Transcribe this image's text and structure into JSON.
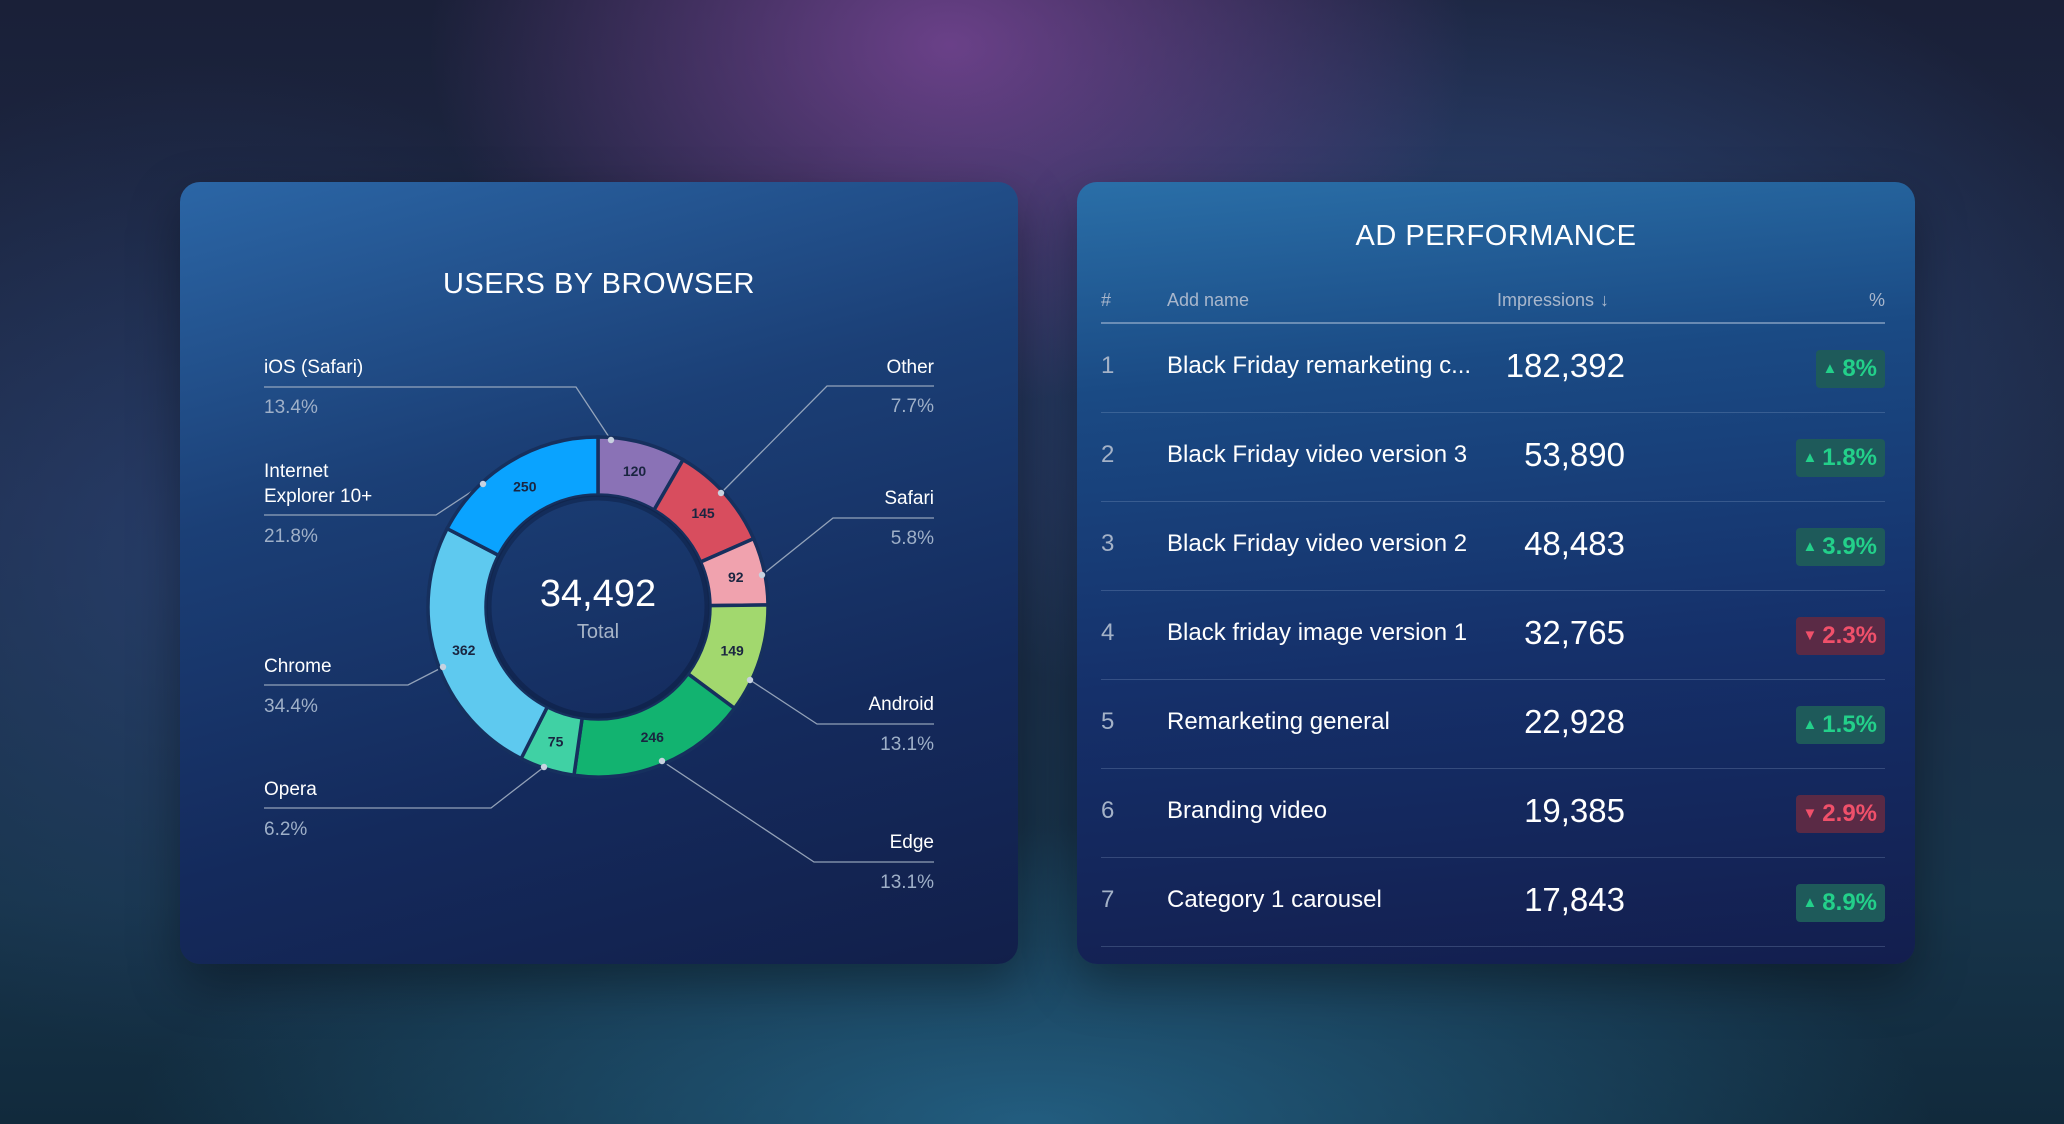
{
  "users_by_browser": {
    "title": "USERS BY BROWSER",
    "center_total": "34,492",
    "center_label": "Total",
    "chart_data": {
      "type": "pie",
      "title": "USERS BY BROWSER",
      "slices": [
        {
          "label": "iOS (Safari)",
          "value": 120,
          "percent": "13.4%",
          "color": "#8a72b6"
        },
        {
          "label": "Other",
          "value": 145,
          "percent": "7.7%",
          "color": "#d84d5e"
        },
        {
          "label": "Safari",
          "value": 92,
          "percent": "5.8%",
          "color": "#f0a2ae"
        },
        {
          "label": "Android",
          "value": 149,
          "percent": "13.1%",
          "color": "#a2d86e"
        },
        {
          "label": "Edge",
          "value": 246,
          "percent": "13.1%",
          "color": "#12b370"
        },
        {
          "label": "Opera",
          "value": 75,
          "percent": "6.2%",
          "color": "#40d1a4"
        },
        {
          "label": "Chrome",
          "value": 362,
          "percent": "34.4%",
          "color": "#5ec9ef"
        },
        {
          "label": "Internet Explorer 10+",
          "value": 250,
          "percent": "21.8%",
          "color": "#0aa3ff"
        }
      ],
      "total": "34,492"
    },
    "legend": {
      "ios": {
        "name": "iOS (Safari)",
        "pct": "13.4%"
      },
      "ie_line1": "Internet",
      "ie_line2": "Explorer 10+",
      "ie_pct": "21.8%",
      "chrome": {
        "name": "Chrome",
        "pct": "34.4%"
      },
      "opera": {
        "name": "Opera",
        "pct": "6.2%"
      },
      "other": {
        "name": "Other",
        "pct": "7.7%"
      },
      "safari": {
        "name": "Safari",
        "pct": "5.8%"
      },
      "android": {
        "name": "Android",
        "pct": "13.1%"
      },
      "edge": {
        "name": "Edge",
        "pct": "13.1%"
      }
    }
  },
  "ad_performance": {
    "title": "AD PERFORMANCE",
    "headers": {
      "num": "#",
      "name": "Add name",
      "impressions": "Impressions",
      "sort_icon": "↓",
      "pct": "%"
    },
    "rows": [
      {
        "num": "1",
        "name": "Black Friday remarketing c...",
        "impressions": "182,392",
        "trend": "up",
        "arrow": "▲",
        "pct": "8%"
      },
      {
        "num": "2",
        "name": "Black Friday video version 3",
        "impressions": "53,890",
        "trend": "up",
        "arrow": "▲",
        "pct": "1.8%"
      },
      {
        "num": "3",
        "name": "Black Friday video version 2",
        "impressions": "48,483",
        "trend": "up",
        "arrow": "▲",
        "pct": "3.9%"
      },
      {
        "num": "4",
        "name": "Black friday image version 1",
        "impressions": "32,765",
        "trend": "down",
        "arrow": "▼",
        "pct": "2.3%"
      },
      {
        "num": "5",
        "name": "Remarketing general",
        "impressions": "22,928",
        "trend": "up",
        "arrow": "▲",
        "pct": "1.5%"
      },
      {
        "num": "6",
        "name": "Branding video",
        "impressions": "19,385",
        "trend": "down",
        "arrow": "▼",
        "pct": "2.9%"
      },
      {
        "num": "7",
        "name": "Category 1 carousel",
        "impressions": "17,843",
        "trend": "up",
        "arrow": "▲",
        "pct": "8.9%"
      }
    ]
  }
}
